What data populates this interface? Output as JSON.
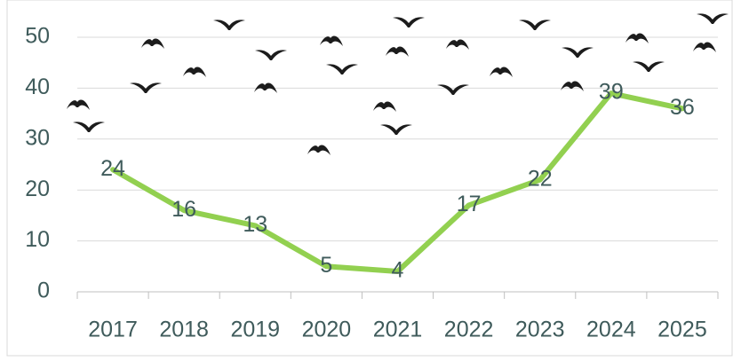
{
  "chart_data": {
    "type": "line",
    "categories": [
      "2017",
      "2018",
      "2019",
      "2020",
      "2021",
      "2022",
      "2023",
      "2024",
      "2025"
    ],
    "values": [
      24,
      16,
      13,
      5,
      4,
      17,
      22,
      39,
      36
    ],
    "color": "#92d050",
    "ylim": [
      0,
      50
    ],
    "yticks": [
      0,
      10,
      20,
      30,
      40,
      50
    ],
    "grid": true
  }
}
